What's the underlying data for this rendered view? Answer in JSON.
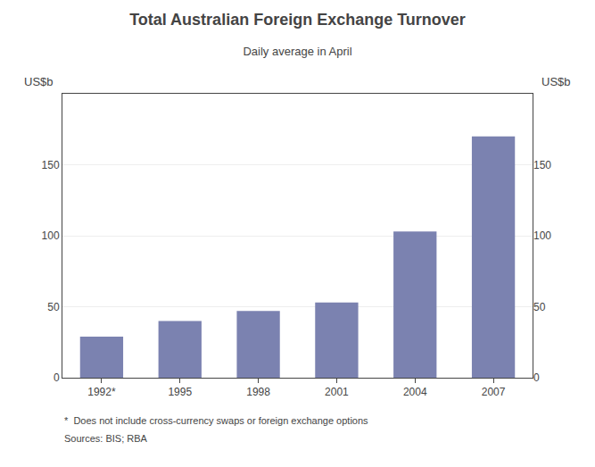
{
  "chart_data": {
    "type": "bar",
    "title": "Total Australian Foreign Exchange Turnover",
    "subtitle": "Daily average in April",
    "ylabel": "US$b",
    "y2label": "US$b",
    "categories": [
      "1992*",
      "1995",
      "1998",
      "2001",
      "2004",
      "2007"
    ],
    "values": [
      29,
      40,
      47,
      53,
      103,
      170
    ],
    "color": "#7B82B0",
    "ylim": [
      0,
      200
    ],
    "yticks": [
      0,
      50,
      100,
      150
    ],
    "y2lim": [
      0,
      200
    ],
    "y2ticks": [
      0,
      50,
      100,
      150
    ],
    "grid": true,
    "annotations": [
      "*  Does not include cross-currency swaps or foreign exchange options",
      "Sources: BIS; RBA"
    ]
  }
}
